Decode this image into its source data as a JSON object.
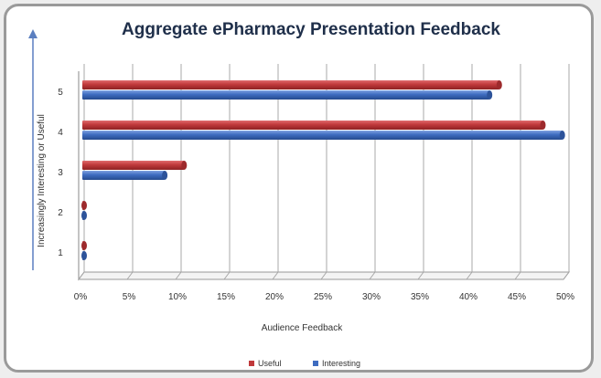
{
  "chart_data": {
    "type": "bar",
    "orientation": "horizontal",
    "title": "Aggregate ePharmacy  Presentation Feedback",
    "xlabel": "Audience Feedback",
    "ylabel": "Increasingly Interesting or Useful",
    "categories": [
      "1",
      "2",
      "3",
      "4",
      "5"
    ],
    "x_ticks": [
      "0%",
      "5%",
      "10%",
      "15%",
      "20%",
      "25%",
      "30%",
      "35%",
      "40%",
      "45%",
      "50%"
    ],
    "xlim": [
      0,
      50
    ],
    "series": [
      {
        "name": "Useful",
        "color": "#c0393b",
        "values": [
          0,
          0,
          10.5,
          47.5,
          43
        ]
      },
      {
        "name": "Interesting",
        "color": "#3e6cc0",
        "values": [
          0,
          0,
          8.5,
          49.5,
          42
        ]
      }
    ],
    "grid": true,
    "legend": "bottom"
  }
}
